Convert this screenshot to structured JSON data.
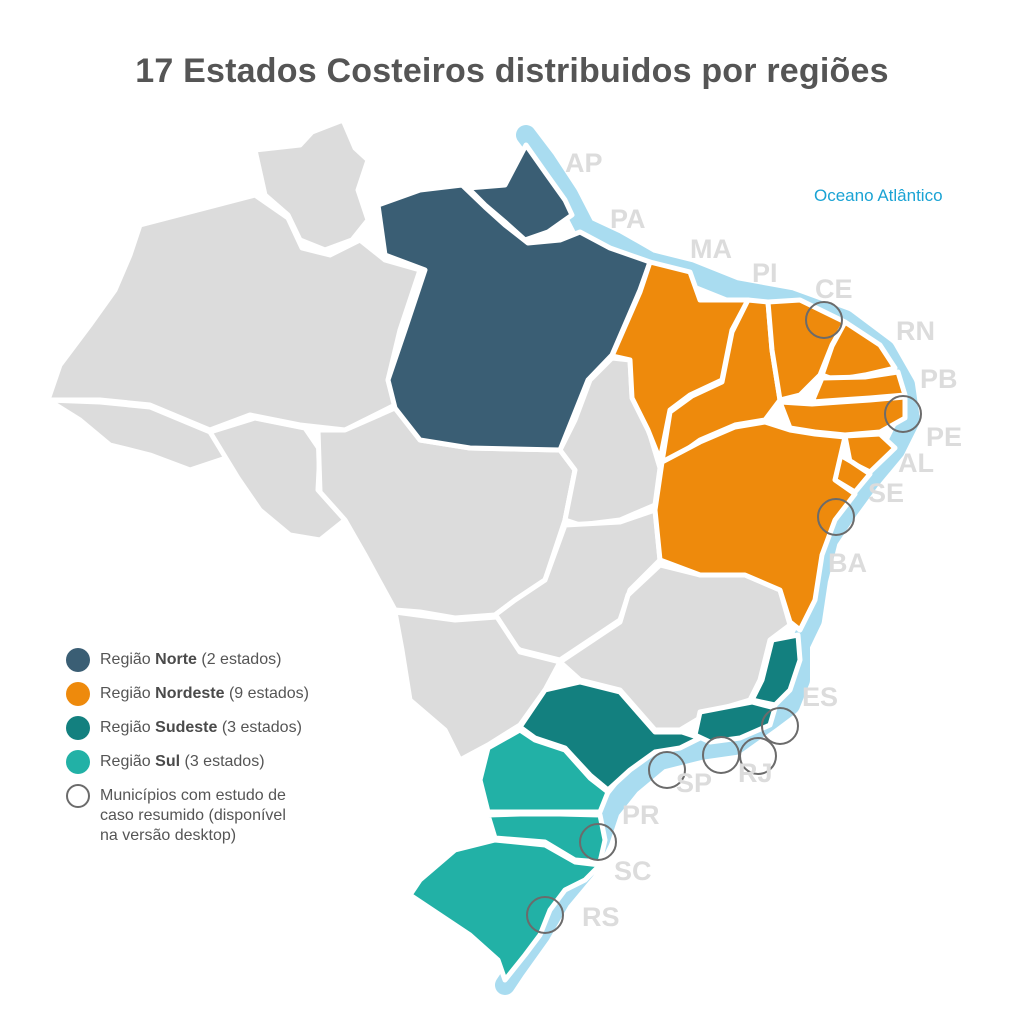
{
  "title": "17 Estados Costeiros distribuidos por regiões",
  "ocean_label": "Oceano Atlântico",
  "colors": {
    "norte": "#3a5e74",
    "nordeste": "#ee8a0c",
    "sudeste": "#13807f",
    "sul": "#22b1a6",
    "other": "#dcdcdc",
    "coast": "#a9dcf0",
    "label": "#dcdcdc",
    "ring": "#6b6b6b"
  },
  "state_labels": [
    "AP",
    "PA",
    "MA",
    "PI",
    "CE",
    "RN",
    "PB",
    "PE",
    "AL",
    "SE",
    "BA",
    "ES",
    "RJ",
    "SP",
    "PR",
    "SC",
    "RS"
  ],
  "legend": [
    {
      "prefix": "Região ",
      "bold": "Norte",
      "suffix": " (2 estados)",
      "icon": "norte-swatch"
    },
    {
      "prefix": "Região ",
      "bold": "Nordeste",
      "suffix": " (9 estados)",
      "icon": "nordeste-swatch"
    },
    {
      "prefix": "Região ",
      "bold": "Sudeste",
      "suffix": " (3 estados)",
      "icon": "sudeste-swatch"
    },
    {
      "prefix": "Região ",
      "bold": "Sul",
      "suffix": " (3 estados)",
      "icon": "sul-swatch"
    }
  ],
  "legend_note": [
    "Municípios com estudo de",
    "caso resumido (disponível",
    "na versão desktop)"
  ]
}
